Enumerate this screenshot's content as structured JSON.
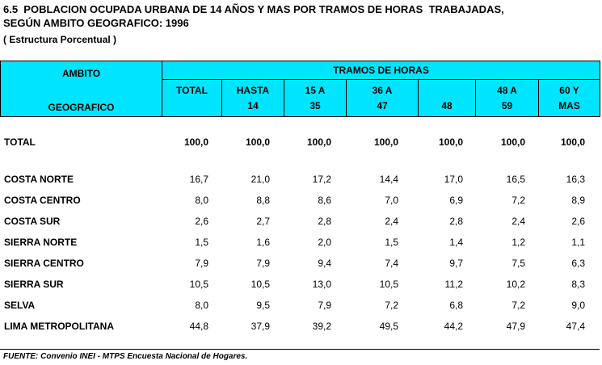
{
  "title": {
    "line1": "6.5  POBLACION OCUPADA URBANA DE 14 AÑOS Y MAS POR TRAMOS DE HORAS  TRABAJADAS,",
    "line2": "SEGÚN AMBITO GEOGRAFICO: 1996",
    "line3": "( Estructura Porcentual )"
  },
  "header": {
    "ambito_line1": "AMBITO",
    "ambito_line2": "GEOGRAFICO",
    "group_label": "TRAMOS DE HORAS",
    "columns": [
      {
        "l1": "TOTAL",
        "l2": ""
      },
      {
        "l1": "HASTA",
        "l2": "14"
      },
      {
        "l1": "15 A",
        "l2": "35"
      },
      {
        "l1": "36 A",
        "l2": "47"
      },
      {
        "l1": "",
        "l2": "48"
      },
      {
        "l1": "48 A",
        "l2": "59"
      },
      {
        "l1": "60 Y",
        "l2": "MAS"
      }
    ]
  },
  "rows": [
    {
      "label": "TOTAL",
      "values": [
        "100,0",
        "100,0",
        "100,0",
        "100,0",
        "100,0",
        "100,0",
        "100,0"
      ]
    },
    {
      "label": "COSTA NORTE",
      "values": [
        "16,7",
        "21,0",
        "17,2",
        "14,4",
        "17,0",
        "16,5",
        "16,3"
      ]
    },
    {
      "label": "COSTA CENTRO",
      "values": [
        "8,0",
        "8,8",
        "8,6",
        "7,0",
        "6,9",
        "7,2",
        "8,9"
      ]
    },
    {
      "label": "COSTA SUR",
      "values": [
        "2,6",
        "2,7",
        "2,8",
        "2,4",
        "2,8",
        "2,4",
        "2,6"
      ]
    },
    {
      "label": "SIERRA NORTE",
      "values": [
        "1,5",
        "1,6",
        "2,0",
        "1,5",
        "1,4",
        "1,2",
        "1,1"
      ]
    },
    {
      "label": "SIERRA CENTRO",
      "values": [
        "7,9",
        "7,9",
        "9,4",
        "7,4",
        "9,7",
        "7,5",
        "6,3"
      ]
    },
    {
      "label": "SIERRA SUR",
      "values": [
        "10,5",
        "10,5",
        "13,0",
        "10,5",
        "11,2",
        "10,2",
        "8,3"
      ]
    },
    {
      "label": "SELVA",
      "values": [
        "8,0",
        "9,5",
        "7,9",
        "7,2",
        "6,8",
        "7,2",
        "9,0"
      ]
    },
    {
      "label": "LIMA METROPOLITANA",
      "values": [
        "44,8",
        "37,9",
        "39,2",
        "49,5",
        "44,2",
        "47,9",
        "47,4"
      ]
    }
  ],
  "footer": "FUENTE:  Convenio INEI - MTPS Encuesta Nacional de Hogares.",
  "colors": {
    "header_bg": "#00e5ff"
  }
}
